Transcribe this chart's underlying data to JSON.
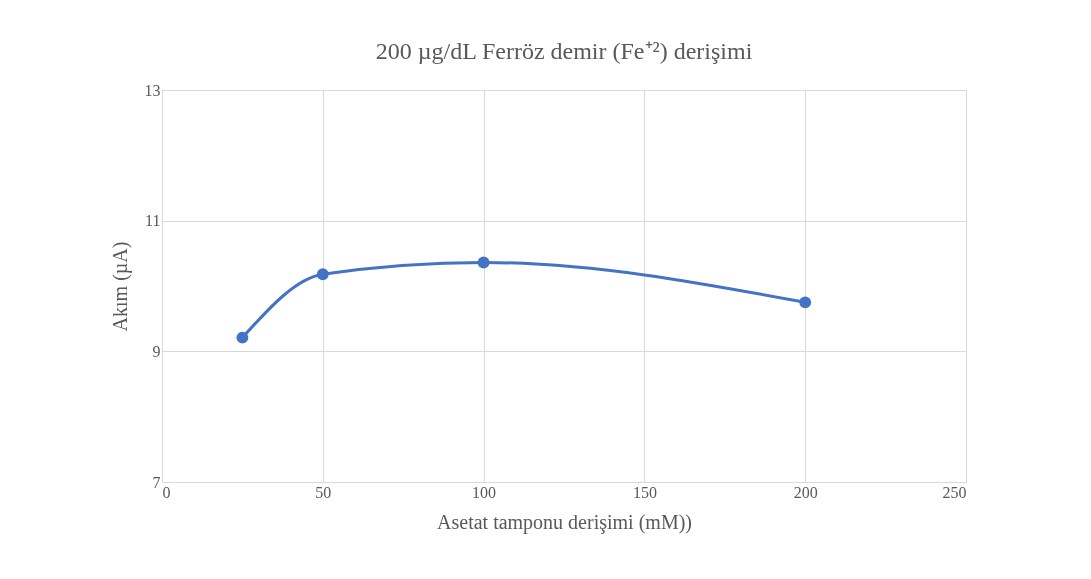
{
  "chart_data": {
    "type": "line",
    "title": "200 µg/dL Ferröz demir (Fe⁺²) derişimi",
    "xlabel": "Asetat tamponu derişimi (mM))",
    "ylabel": "Akım (µA)",
    "x": [
      25,
      50,
      100,
      200
    ],
    "series": [
      {
        "color": "#4472c4",
        "values": [
          9.21,
          10.18,
          10.36,
          9.75
        ]
      }
    ],
    "xlim": [
      0,
      250
    ],
    "xticks": [
      0,
      50,
      100,
      150,
      200,
      250
    ],
    "ylim": [
      7,
      13
    ],
    "yticks": [
      7,
      9,
      11,
      13
    ],
    "grid": true,
    "marker": "circle",
    "line_style": "solid"
  }
}
